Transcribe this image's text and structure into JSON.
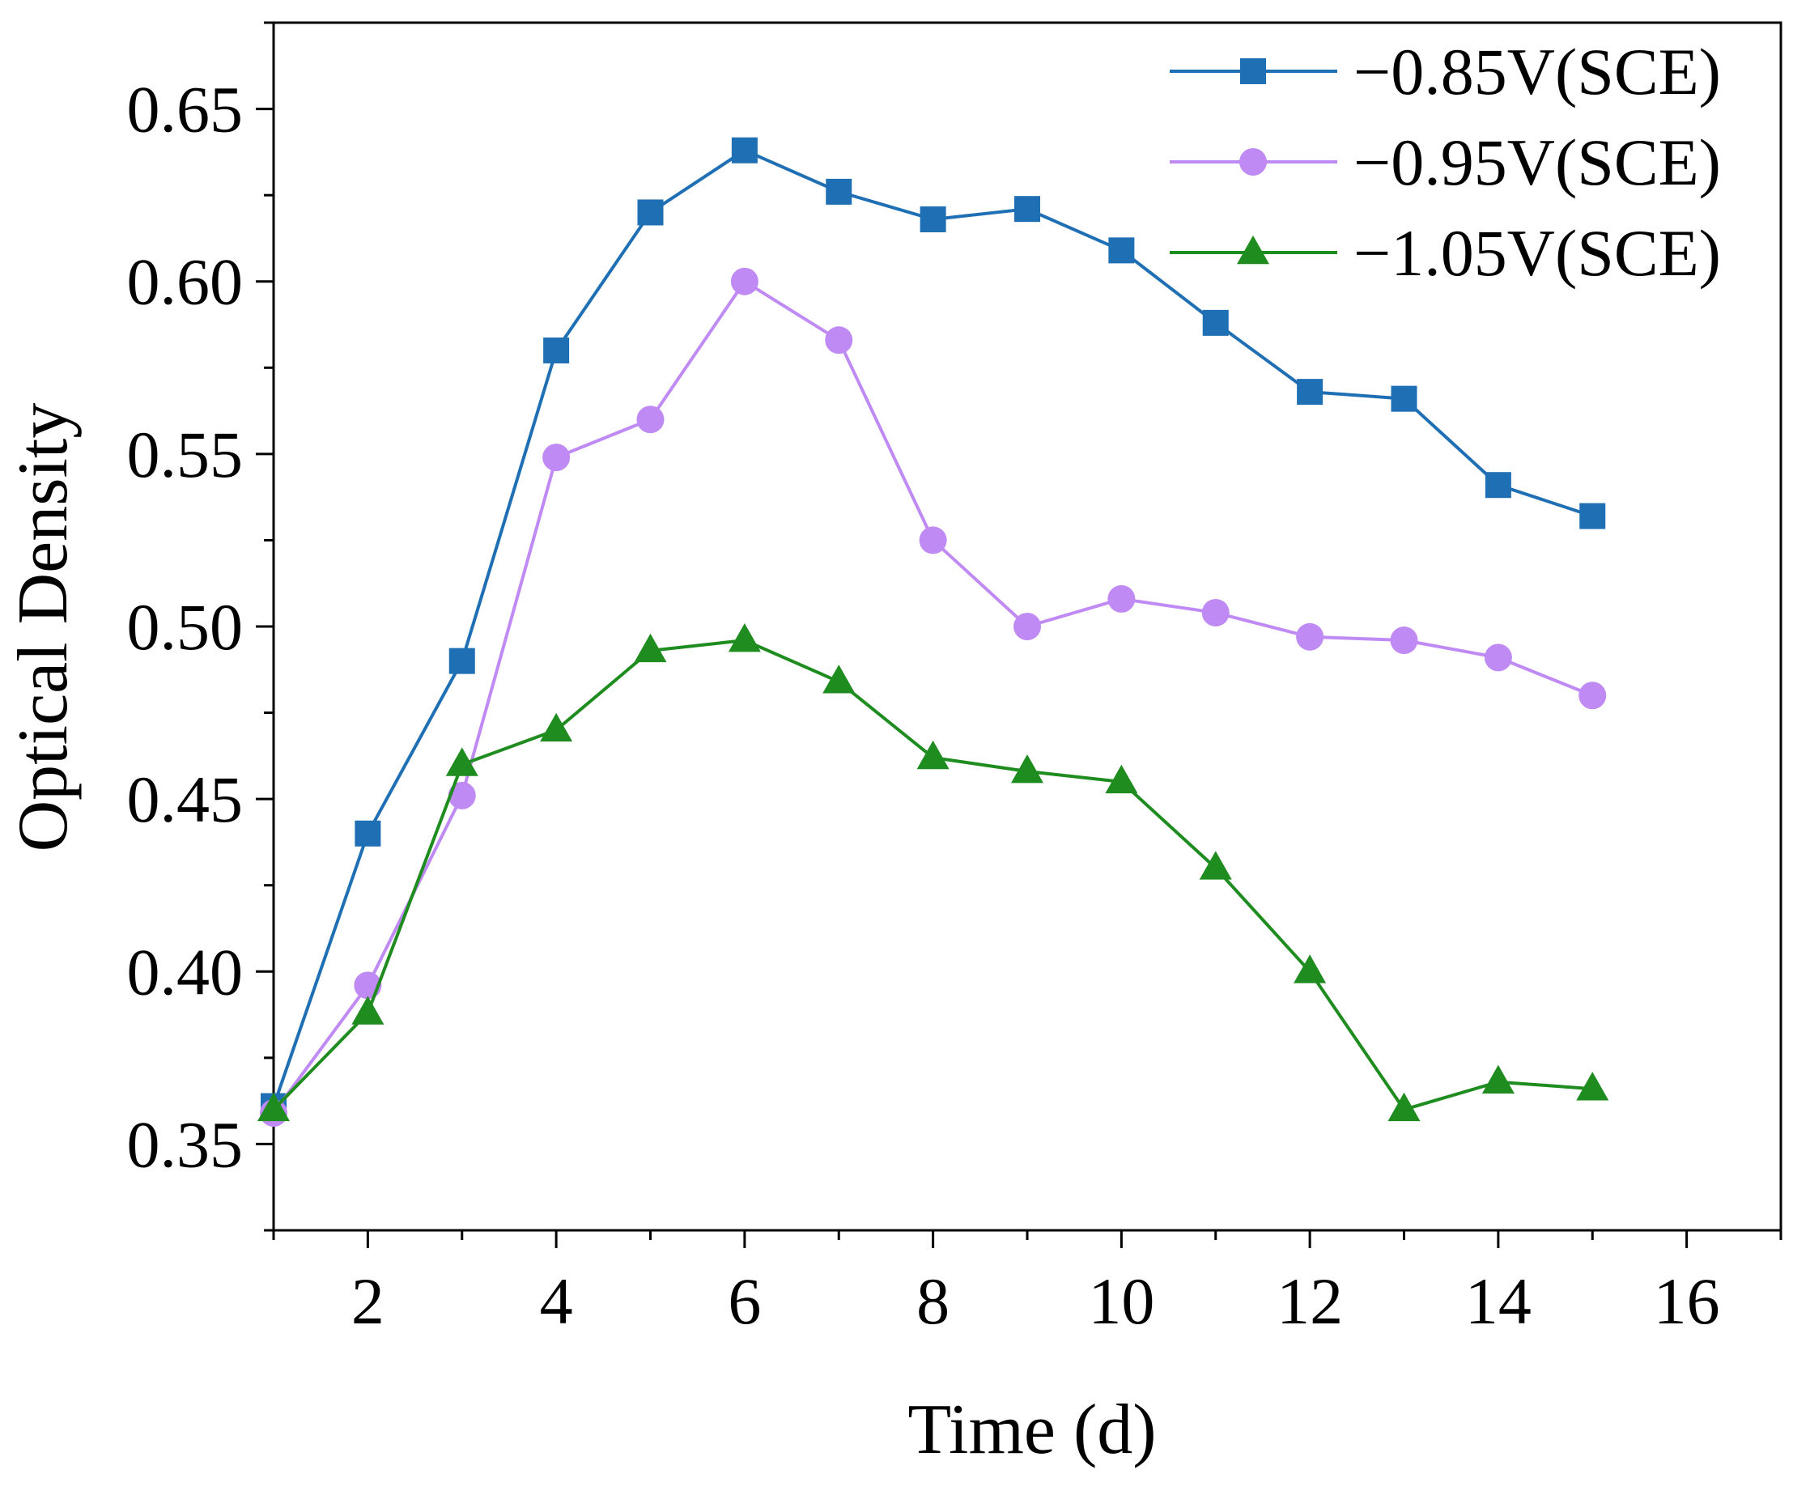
{
  "chart_data": {
    "type": "line",
    "xlabel": "Time (d)",
    "ylabel": "Optical Density",
    "xlim": [
      1,
      17
    ],
    "ylim": [
      0.325,
      0.675
    ],
    "xticks": [
      2,
      4,
      6,
      8,
      10,
      12,
      14,
      16
    ],
    "xtick_labels": [
      "2",
      "4",
      "6",
      "8",
      "10",
      "12",
      "14",
      "16"
    ],
    "yticks": [
      0.35,
      0.4,
      0.45,
      0.5,
      0.55,
      0.6,
      0.65
    ],
    "ytick_labels": [
      "0.35",
      "0.40",
      "0.45",
      "0.50",
      "0.55",
      "0.60",
      "0.65"
    ],
    "legend_position": "top-right",
    "grid": false,
    "series": [
      {
        "name": "−0.85V(SCE)",
        "marker": "square",
        "color": "#1f6fb4",
        "x": [
          1,
          2,
          3,
          4,
          5,
          6,
          7,
          8,
          9,
          10,
          11,
          12,
          13,
          14,
          15
        ],
        "values": [
          0.361,
          0.44,
          0.49,
          0.58,
          0.62,
          0.638,
          0.626,
          0.618,
          0.621,
          0.609,
          0.588,
          0.568,
          0.566,
          0.541,
          0.532
        ]
      },
      {
        "name": "−0.95V(SCE)",
        "marker": "circle",
        "color": "#c08af5",
        "x": [
          1,
          2,
          3,
          4,
          5,
          6,
          7,
          8,
          9,
          10,
          11,
          12,
          13,
          14,
          15
        ],
        "values": [
          0.359,
          0.396,
          0.451,
          0.549,
          0.56,
          0.6,
          0.583,
          0.525,
          0.5,
          0.508,
          0.504,
          0.497,
          0.496,
          0.491,
          0.48
        ]
      },
      {
        "name": "−1.05V(SCE)",
        "marker": "triangle",
        "color": "#1e8c1e",
        "x": [
          1,
          2,
          3,
          4,
          5,
          6,
          7,
          8,
          9,
          10,
          11,
          12,
          13,
          14,
          15
        ],
        "values": [
          0.36,
          0.388,
          0.46,
          0.47,
          0.493,
          0.496,
          0.484,
          0.462,
          0.458,
          0.455,
          0.43,
          0.4,
          0.36,
          0.368,
          0.366
        ]
      }
    ]
  }
}
